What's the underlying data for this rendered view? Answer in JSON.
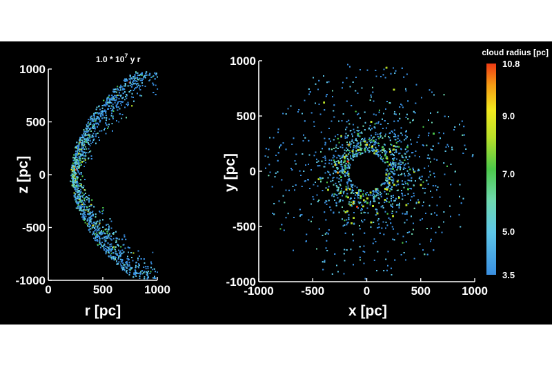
{
  "chart_data": [
    {
      "type": "scatter",
      "panel": "left",
      "time_label": "1.0 * 10",
      "time_exponent": "7",
      "time_unit": " y r",
      "xlabel": "r [pc]",
      "ylabel": "z [pc]",
      "xlim": [
        0,
        1000
      ],
      "ylim": [
        -1000,
        1000
      ],
      "xticks": [
        "0",
        "500",
        "1000"
      ],
      "xtick_values": [
        0,
        500,
        1000
      ],
      "yticks": [
        "1000",
        "500",
        "0",
        "-500",
        "-1000"
      ],
      "ytick_values": [
        1000,
        500,
        0,
        -500,
        -1000
      ],
      "distribution": "bow-shaped cloud of points: r roughly 230 + 0.00058*z^2 (widening to ~800-1000 at |z|=1000); inner edge near r=200 at z=0",
      "n_points_approx": 6000,
      "color_encoding": "cloud radius [pc]",
      "grid": false
    },
    {
      "type": "scatter",
      "panel": "right",
      "xlabel": "x [pc]",
      "ylabel": "y [pc]",
      "xlim": [
        -1000,
        1000
      ],
      "ylim": [
        -1000,
        1000
      ],
      "xticks": [
        "-1000",
        "-500",
        "0",
        "500",
        "1000"
      ],
      "xtick_values": [
        -1000,
        -500,
        0,
        500,
        1000
      ],
      "yticks": [
        "1000",
        "500",
        "0",
        "-500",
        "-1000"
      ],
      "ytick_values": [
        1000,
        500,
        0,
        -500,
        -1000
      ],
      "distribution": "face-on ring of points with central hole of radius ~150-200 pc, densest at r~200-400, sparse out to ~1000",
      "n_points_approx": 6000,
      "color_encoding": "cloud radius [pc]",
      "grid": false
    }
  ],
  "colorbar": {
    "title": "cloud radius [pc]",
    "range": [
      3.5,
      10.8
    ],
    "ticks": [
      "10.8",
      "9.0",
      "7.0",
      "5.0",
      "3.5"
    ],
    "tick_values": [
      10.8,
      9.0,
      7.0,
      5.0,
      3.5
    ],
    "colors": [
      "#3a8fe0",
      "#5ec6e8",
      "#6ed8b0",
      "#4cc84a",
      "#b8e02a",
      "#f2e81e",
      "#f59a14",
      "#ee3a14"
    ]
  }
}
